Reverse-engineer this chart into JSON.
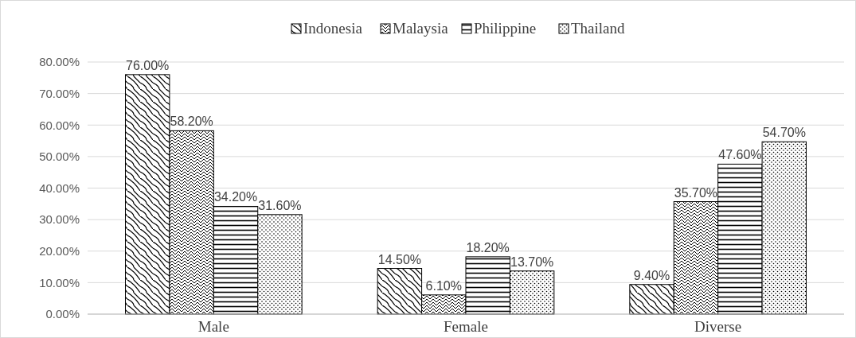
{
  "chart_data": {
    "type": "bar",
    "categories": [
      "Male",
      "Female",
      "Diverse"
    ],
    "series": [
      {
        "name": "Indonesia",
        "color": "#000000",
        "values": [
          76.0,
          14.5,
          9.4
        ],
        "value_labels": [
          "76.00%",
          "14.50%",
          "9.40%"
        ]
      },
      {
        "name": "Malaysia",
        "color": "#000000",
        "values": [
          58.2,
          6.1,
          35.7
        ],
        "value_labels": [
          "58.20%",
          "6.10%",
          "35.70%"
        ]
      },
      {
        "name": "Philippine",
        "color": "#000000",
        "values": [
          34.2,
          18.2,
          47.6
        ],
        "value_labels": [
          "34.20%",
          "18.20%",
          "47.60%"
        ]
      },
      {
        "name": "Thailand",
        "color": "#000000",
        "values": [
          31.6,
          13.7,
          54.7
        ],
        "value_labels": [
          "31.60%",
          "13.70%",
          "54.70%"
        ]
      }
    ],
    "ylim": [
      0,
      80
    ],
    "yticks": [
      {
        "value": 0,
        "label": "0.00%"
      },
      {
        "value": 10,
        "label": "10.00%"
      },
      {
        "value": 20,
        "label": "20.00%"
      },
      {
        "value": 30,
        "label": "30.00%"
      },
      {
        "value": 40,
        "label": "40.00%"
      },
      {
        "value": 50,
        "label": "50.00%"
      },
      {
        "value": 60,
        "label": "60.00%"
      },
      {
        "value": 70,
        "label": "70.00%"
      },
      {
        "value": 80,
        "label": "80.00%"
      }
    ],
    "grid": "y",
    "legend": "top"
  }
}
